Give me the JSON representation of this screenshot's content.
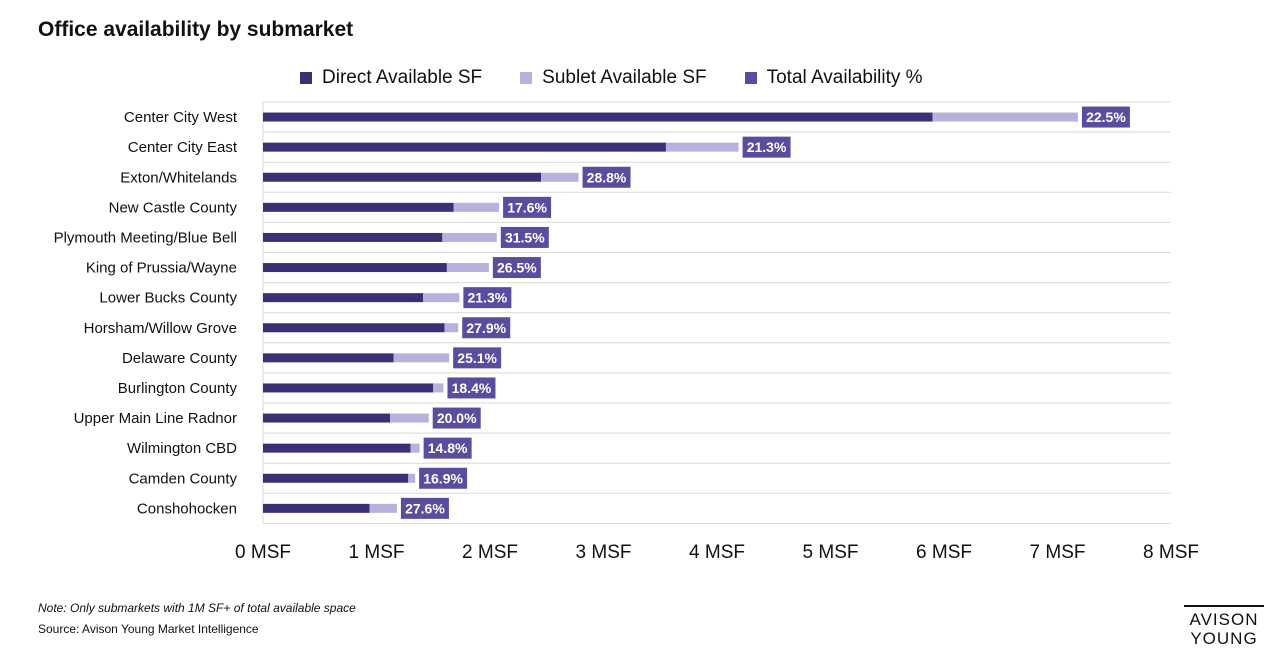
{
  "title": "Office availability by submarket",
  "legend": {
    "direct": "Direct Available SF",
    "sublet": "Sublet Available SF",
    "total": "Total Availability %"
  },
  "colors": {
    "direct": "#3d2f75",
    "sublet": "#b9b0dc",
    "label_bg": "#5c4c9e",
    "label_text": "#ffffff",
    "grid": "#d9d9d9"
  },
  "note": "Note: Only submarkets with 1M SF+ of total available space",
  "source": "Source: Avison Young Market Intelligence",
  "logo": {
    "line1": "AVISON",
    "line2": "YOUNG"
  },
  "chart_data": {
    "type": "bar",
    "orientation": "horizontal",
    "stacked": true,
    "title": "Office availability by submarket",
    "categories": [
      "Center City West",
      "Center City East",
      "Exton/Whitelands",
      "New Castle County",
      "Plymouth Meeting/Blue Bell",
      "King of Prussia/Wayne",
      "Lower Bucks County",
      "Horsham/Willow Grove",
      "Delaware County",
      "Burlington County",
      "Upper Main Line Radnor",
      "Wilmington CBD",
      "Camden County",
      "Conshohocken"
    ],
    "series": [
      {
        "name": "Direct Available SF",
        "unit": "MSF",
        "values": [
          5.9,
          3.55,
          2.45,
          1.68,
          1.58,
          1.62,
          1.41,
          1.6,
          1.15,
          1.5,
          1.12,
          1.3,
          1.28,
          0.94
        ]
      },
      {
        "name": "Sublet Available SF",
        "unit": "MSF",
        "values": [
          1.28,
          0.64,
          0.33,
          0.4,
          0.48,
          0.37,
          0.32,
          0.12,
          0.49,
          0.09,
          0.34,
          0.08,
          0.06,
          0.24
        ]
      },
      {
        "name": "Total Availability %",
        "labels": [
          "22.5%",
          "21.3%",
          "28.8%",
          "17.6%",
          "31.5%",
          "26.5%",
          "21.3%",
          "27.9%",
          "25.1%",
          "18.4%",
          "20.0%",
          "14.8%",
          "16.9%",
          "27.6%"
        ]
      }
    ],
    "xaxis": {
      "ticks": [
        0,
        1,
        2,
        3,
        4,
        5,
        6,
        7,
        8
      ],
      "tick_labels": [
        "0 MSF",
        "1 MSF",
        "2 MSF",
        "3 MSF",
        "4 MSF",
        "5 MSF",
        "6 MSF",
        "7 MSF",
        "8 MSF"
      ],
      "range": [
        0,
        8
      ]
    },
    "grid": true,
    "legend_position": "top"
  }
}
